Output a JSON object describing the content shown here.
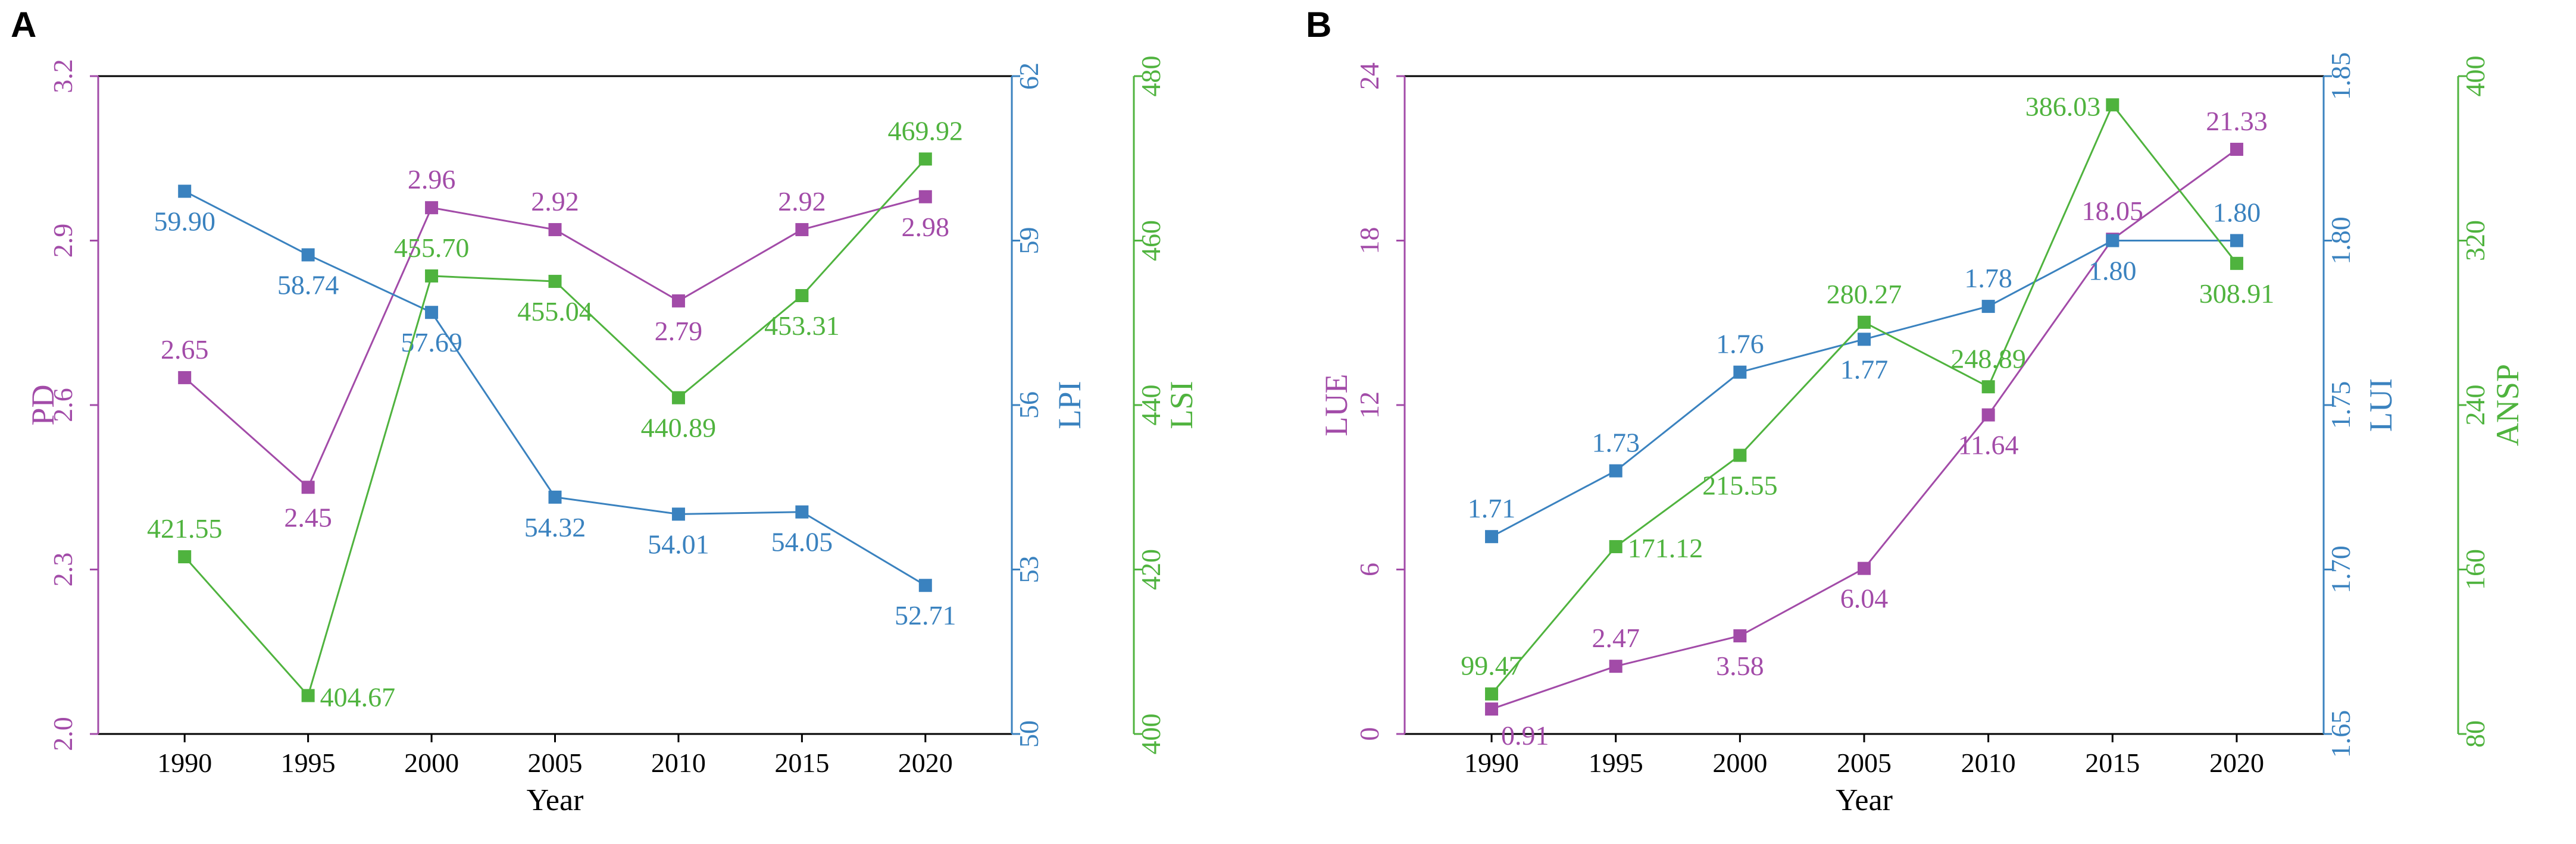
{
  "colors": {
    "purple": "#a24ba8",
    "blue": "#3a82bf",
    "green": "#4fb33e",
    "axis": "#000000"
  },
  "chart_data": [
    {
      "type": "line",
      "panel_label": "A",
      "xlabel": "Year",
      "x": [
        1990,
        1995,
        2000,
        2005,
        2010,
        2015,
        2020
      ],
      "axes": [
        {
          "label": "PD",
          "position": "left",
          "color": "purple",
          "ylim": [
            2.0,
            3.2
          ],
          "ticks": [
            "2.0",
            "2.3",
            "2.6",
            "2.9",
            "3.2"
          ]
        },
        {
          "label": "LPI",
          "position": "right",
          "color": "blue",
          "ylim": [
            50,
            62
          ],
          "ticks": [
            "50",
            "53",
            "56",
            "59",
            "62"
          ]
        },
        {
          "label": "LSI",
          "position": "right-outer",
          "color": "green",
          "ylim": [
            400,
            480
          ],
          "ticks": [
            "400",
            "420",
            "440",
            "460",
            "480"
          ]
        }
      ],
      "series": [
        {
          "name": "PD",
          "axis": 0,
          "color": "purple",
          "values": [
            2.65,
            2.45,
            2.96,
            2.92,
            2.79,
            2.92,
            2.98
          ],
          "labels": [
            "2.65",
            "2.45",
            "2.96",
            "2.92",
            "2.79",
            "2.92",
            "2.98"
          ],
          "label_pos": [
            "above",
            "below",
            "above",
            "above",
            "below",
            "above",
            "below"
          ]
        },
        {
          "name": "LPI",
          "axis": 1,
          "color": "blue",
          "values": [
            59.9,
            58.74,
            57.69,
            54.32,
            54.01,
            54.05,
            52.71
          ],
          "labels": [
            "59.90",
            "58.74",
            "57.69",
            "54.32",
            "54.01",
            "54.05",
            "52.71"
          ],
          "label_pos": [
            "below",
            "below",
            "below",
            "below",
            "below",
            "below",
            "below"
          ]
        },
        {
          "name": "LSI",
          "axis": 2,
          "color": "green",
          "values": [
            421.55,
            404.67,
            455.7,
            455.04,
            440.89,
            453.31,
            469.92
          ],
          "labels": [
            "421.55",
            "404.67",
            "455.70",
            "455.04",
            "440.89",
            "453.31",
            "469.92"
          ],
          "label_pos": [
            "above",
            "right",
            "above",
            "below",
            "below",
            "below",
            "above"
          ]
        }
      ]
    },
    {
      "type": "line",
      "panel_label": "B",
      "xlabel": "Year",
      "x": [
        1990,
        1995,
        2000,
        2005,
        2010,
        2015,
        2020
      ],
      "axes": [
        {
          "label": "LUE",
          "position": "left",
          "color": "purple",
          "ylim": [
            0,
            24
          ],
          "ticks": [
            "0",
            "6",
            "12",
            "18",
            "24"
          ]
        },
        {
          "label": "LUI",
          "position": "right",
          "color": "blue",
          "ylim": [
            1.65,
            1.85
          ],
          "ticks": [
            "1.65",
            "1.70",
            "1.75",
            "1.80",
            "1.85"
          ]
        },
        {
          "label": "ANSP",
          "position": "right-outer",
          "color": "green",
          "ylim": [
            80,
            400
          ],
          "ticks": [
            "80",
            "160",
            "240",
            "320",
            "400"
          ]
        }
      ],
      "series": [
        {
          "name": "LUE",
          "axis": 0,
          "color": "purple",
          "values": [
            0.91,
            2.47,
            3.58,
            6.04,
            11.64,
            18.05,
            21.33
          ],
          "labels": [
            "0.91",
            "2.47",
            "3.58",
            "6.04",
            "11.64",
            "18.05",
            "21.33"
          ],
          "label_pos": [
            "below-right",
            "above",
            "below",
            "below",
            "below",
            "above",
            "above"
          ]
        },
        {
          "name": "LUI",
          "axis": 1,
          "color": "blue",
          "values": [
            1.71,
            1.73,
            1.76,
            1.77,
            1.78,
            1.8,
            1.8
          ],
          "labels": [
            "1.71",
            "1.73",
            "1.76",
            "1.77",
            "1.78",
            "1.80",
            "1.80"
          ],
          "label_pos": [
            "above",
            "above",
            "above",
            "below",
            "above",
            "below",
            "above"
          ]
        },
        {
          "name": "ANSP",
          "axis": 2,
          "color": "green",
          "values": [
            99.47,
            171.12,
            215.55,
            280.27,
            248.89,
            386.03,
            308.91
          ],
          "labels": [
            "99.47",
            "171.12",
            "215.55",
            "280.27",
            "248.89",
            "386.03",
            "308.91"
          ],
          "label_pos": [
            "above",
            "right",
            "below",
            "above",
            "above",
            "left",
            "below"
          ]
        }
      ]
    }
  ]
}
